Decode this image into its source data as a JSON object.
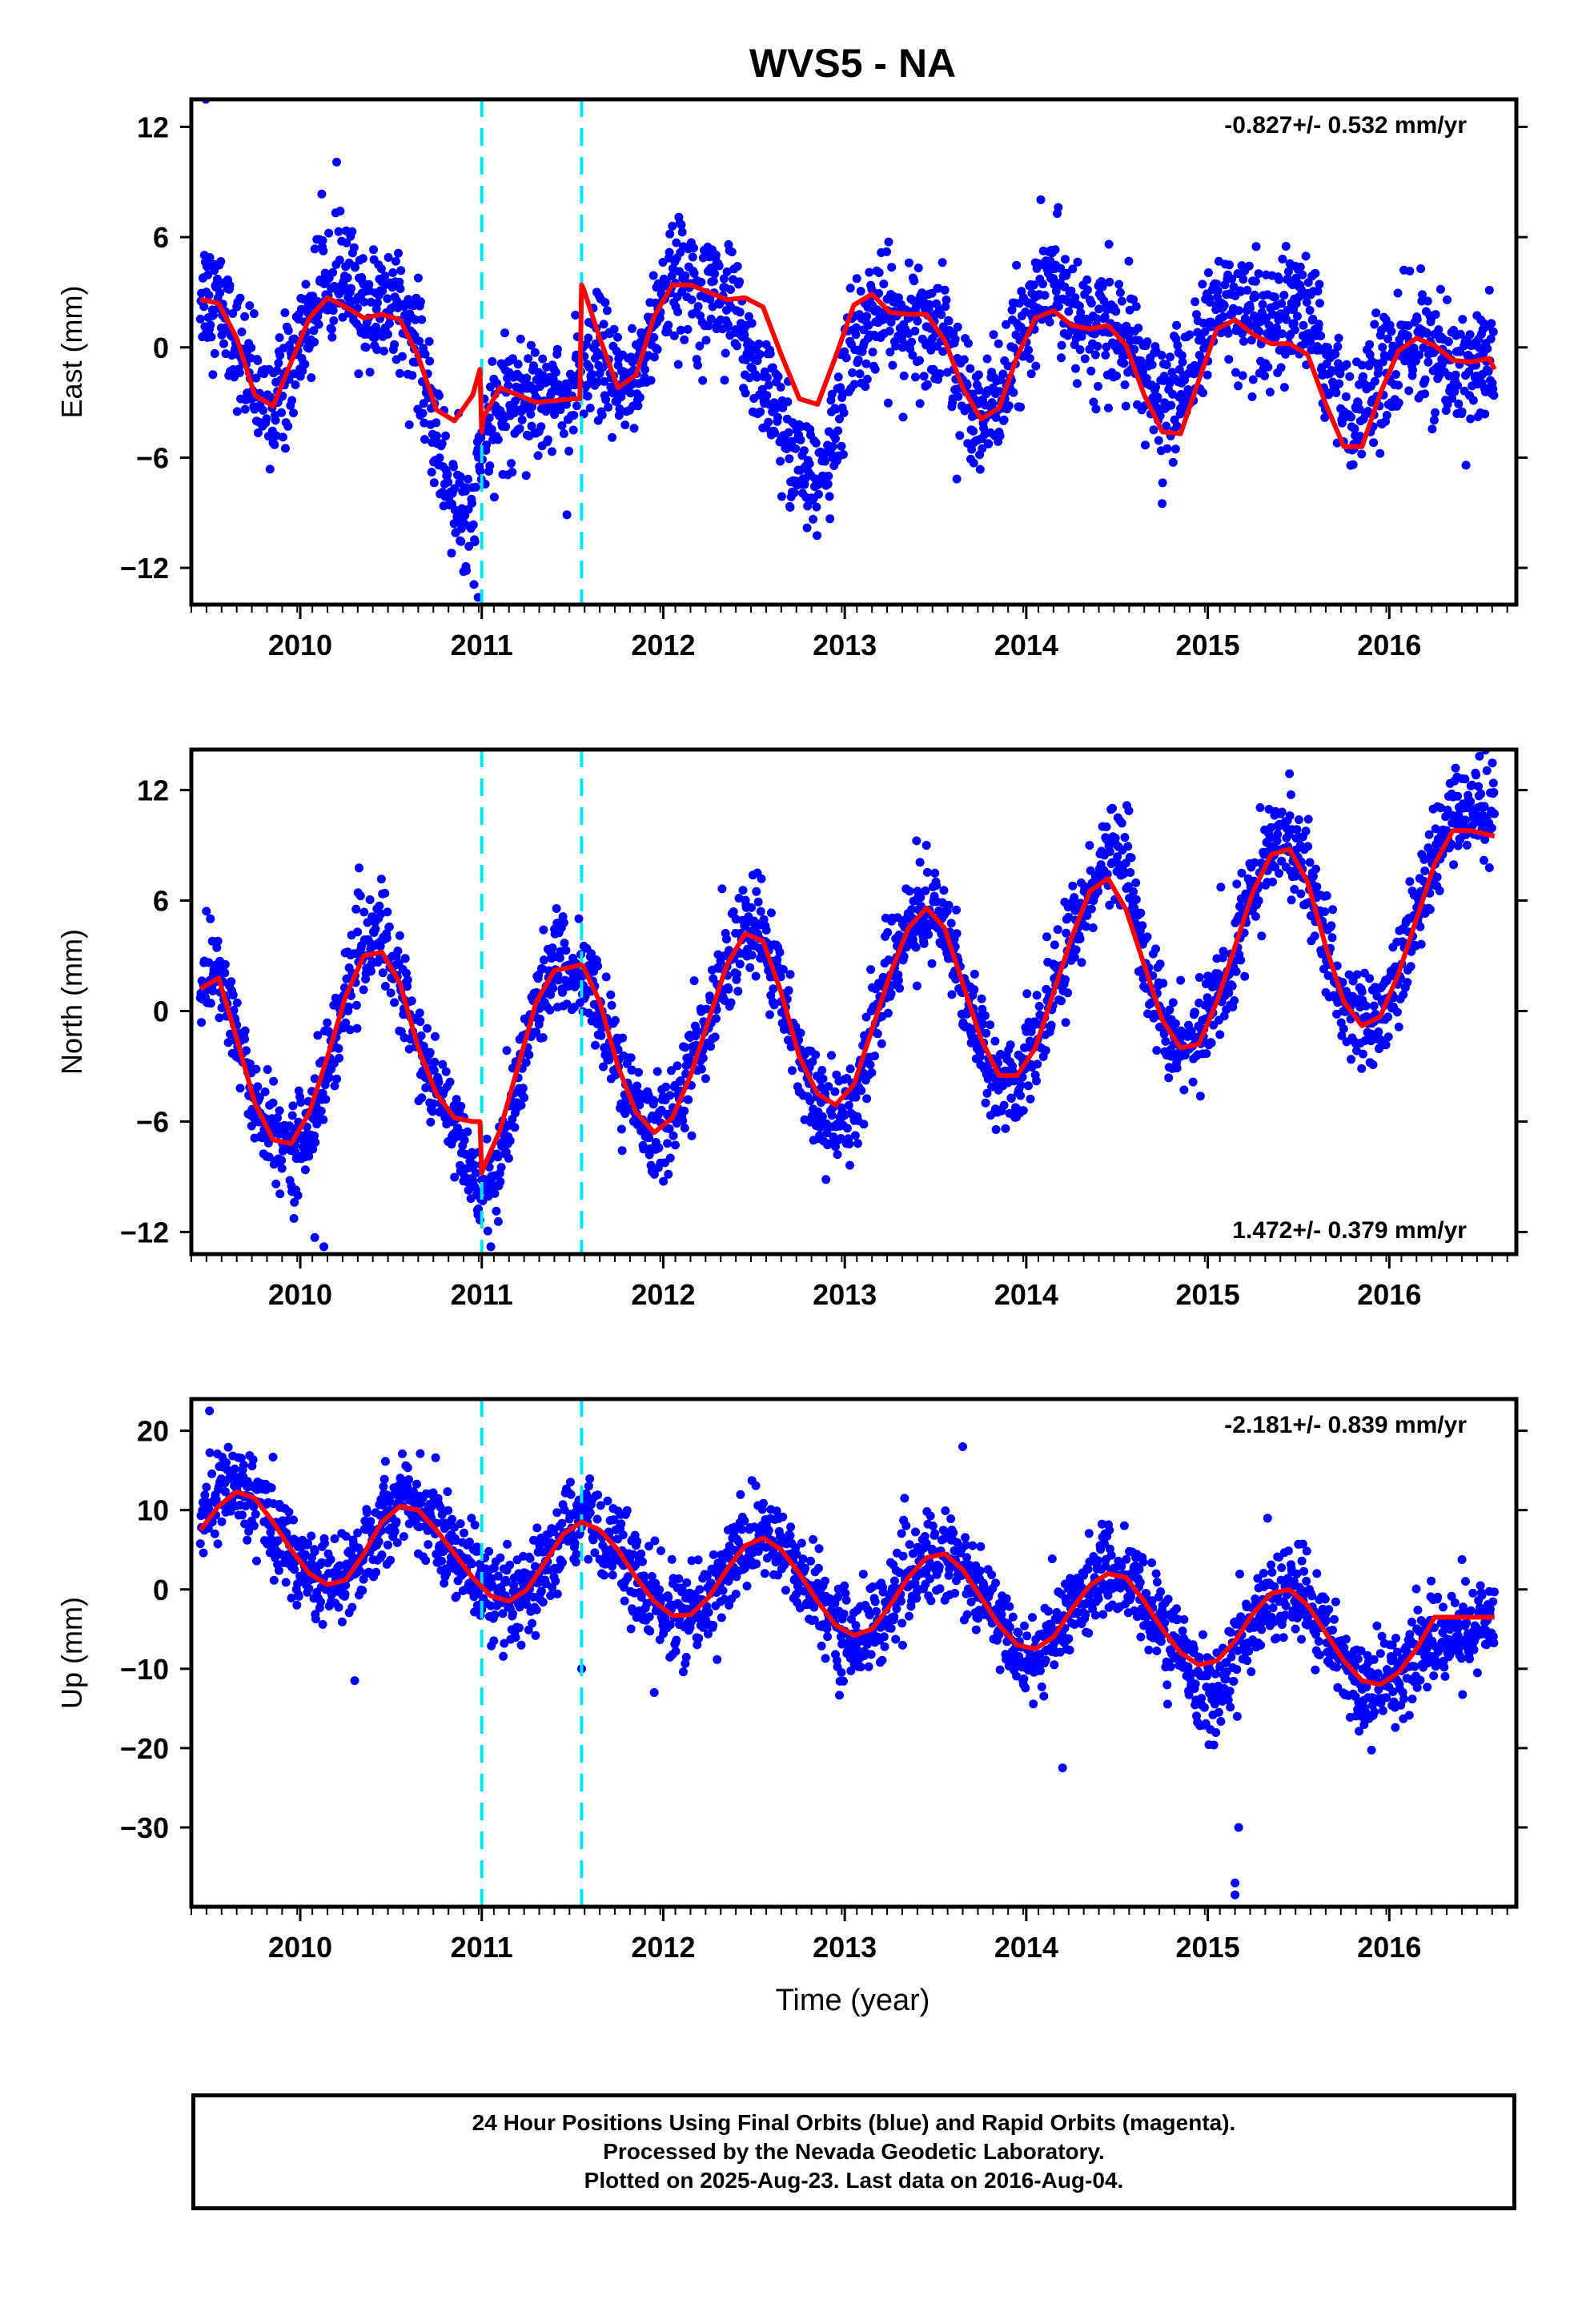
{
  "title": "WVS5 - NA",
  "xlabel": "Time (year)",
  "colors": {
    "final_points": "#0000ff",
    "model_line": "#ff0000",
    "offsets": "#00e5ee",
    "frame": "#000000"
  },
  "chart_data": [
    {
      "type": "scatter",
      "name": "east",
      "ylabel": "East (mm)",
      "xlim": [
        2009.4,
        2016.7
      ],
      "ylim": [
        -14,
        13.5
      ],
      "xticks": [
        2010,
        2011,
        2012,
        2013,
        2014,
        2015,
        2016
      ],
      "yticks": [
        -12,
        -6,
        0,
        6,
        12
      ],
      "yticklabels": [
        "−12",
        "−6",
        "0",
        "6",
        "12"
      ],
      "rate_label": "-0.827+/- 0.532 mm/yr",
      "rate_label_position": "top-right",
      "offsets": [
        2011.0,
        2011.55
      ],
      "model": {
        "x": [
          2009.45,
          2009.55,
          2009.65,
          2009.75,
          2009.85,
          2009.95,
          2010.05,
          2010.15,
          2010.25,
          2010.35,
          2010.45,
          2010.55,
          2010.65,
          2010.75,
          2010.85,
          2010.95,
          2010.99,
          2011.0,
          2011.01,
          2011.1,
          2011.2,
          2011.3,
          2011.4,
          2011.5,
          2011.54,
          2011.55,
          2011.56,
          2011.65,
          2011.75,
          2011.85,
          2011.95,
          2012.05,
          2012.15,
          2012.25,
          2012.35,
          2012.45,
          2012.55,
          2012.65,
          2012.75,
          2012.85,
          2012.95,
          2013.05,
          2013.15,
          2013.25,
          2013.35,
          2013.45,
          2013.55,
          2013.65,
          2013.75,
          2013.85,
          2013.95,
          2014.05,
          2014.15,
          2014.25,
          2014.35,
          2014.45,
          2014.55,
          2014.65,
          2014.75,
          2014.85,
          2014.95,
          2015.05,
          2015.15,
          2015.25,
          2015.35,
          2015.45,
          2015.55,
          2015.65,
          2015.75,
          2015.85,
          2015.95,
          2016.05,
          2016.15,
          2016.25,
          2016.35,
          2016.45,
          2016.55,
          2016.58
        ],
        "y": [
          2.6,
          2.4,
          0.5,
          -2.6,
          -3.2,
          -0.8,
          1.6,
          2.7,
          2.2,
          1.6,
          1.8,
          1.5,
          -0.5,
          -3.4,
          -4.0,
          -2.6,
          -1.2,
          -4.6,
          -3.8,
          -2.2,
          -2.6,
          -3.0,
          -2.9,
          -2.8,
          -2.8,
          3.4,
          3.2,
          0.5,
          -2.2,
          -1.5,
          1.7,
          3.4,
          3.4,
          3.0,
          2.6,
          2.7,
          2.2,
          -0.4,
          -2.8,
          -3.1,
          -0.5,
          2.3,
          2.9,
          1.9,
          1.8,
          1.8,
          0.4,
          -2.2,
          -3.9,
          -3.3,
          -0.5,
          1.6,
          2.0,
          1.2,
          1.0,
          1.2,
          0.1,
          -2.6,
          -4.6,
          -4.7,
          -1.8,
          1.0,
          1.5,
          0.7,
          0.2,
          0.2,
          -0.4,
          -3.1,
          -5.4,
          -5.4,
          -2.5,
          -0.2,
          0.5,
          0.1,
          -0.7,
          -0.8,
          -0.6,
          -1.2
        ]
      },
      "points_trend": {
        "x": [
          2009.45,
          2009.55,
          2009.65,
          2009.75,
          2009.85,
          2009.95,
          2010.05,
          2010.15,
          2010.25,
          2010.35,
          2010.45,
          2010.55,
          2010.65,
          2010.75,
          2010.85,
          2010.95,
          2011.0,
          2011.1,
          2011.2,
          2011.3,
          2011.4,
          2011.5,
          2011.55,
          2011.65,
          2011.75,
          2011.85,
          2011.95,
          2012.05,
          2012.15,
          2012.25,
          2012.35,
          2012.45,
          2012.55,
          2012.65,
          2012.75,
          2012.85,
          2012.95,
          2013.05,
          2013.15,
          2013.25,
          2013.35,
          2013.45,
          2013.55,
          2013.65,
          2013.75,
          2013.85,
          2013.95,
          2014.05,
          2014.15,
          2014.25,
          2014.35,
          2014.45,
          2014.55,
          2014.65,
          2014.75,
          2014.85,
          2014.95,
          2015.05,
          2015.15,
          2015.25,
          2015.35,
          2015.45,
          2015.55,
          2015.65,
          2015.75,
          2015.85,
          2015.95,
          2016.05,
          2016.15,
          2016.25,
          2016.35,
          2016.45,
          2016.58
        ],
        "y": [
          3.2,
          2.5,
          0.2,
          -2.5,
          -3.2,
          -1.2,
          1.5,
          4.5,
          3.5,
          2.0,
          2.2,
          2.8,
          -0.5,
          -5.0,
          -8.5,
          -10.0,
          -5.5,
          -3.2,
          -2.5,
          -2.3,
          -2.4,
          -2.8,
          -2.0,
          -0.5,
          -2.5,
          -1.5,
          1.5,
          3.6,
          4.0,
          3.4,
          2.5,
          0.5,
          -2.0,
          -4.5,
          -6.5,
          -7.5,
          -4.5,
          0.8,
          1.5,
          1.8,
          1.0,
          1.2,
          0.6,
          -2.0,
          -3.5,
          -3.0,
          0.2,
          2.2,
          3.8,
          2.5,
          0.8,
          1.0,
          0.2,
          -1.5,
          -3.5,
          -2.0,
          0.0,
          2.0,
          2.2,
          1.0,
          0.5,
          1.5,
          2.5,
          -1.0,
          -3.0,
          -3.5,
          -1.5,
          -0.5,
          0.5,
          -0.5,
          -1.0,
          -1.0,
          -1.0
        ]
      },
      "points_noise_sd": 1.6,
      "outliers": {
        "x": [
          2009.48,
          2010.98,
          2010.9
        ],
        "y": [
          13.5,
          -13.6,
          -12.2
        ]
      }
    },
    {
      "type": "scatter",
      "name": "north",
      "ylabel": "North (mm)",
      "xlim": [
        2009.4,
        2016.7
      ],
      "ylim": [
        -13.2,
        14.2
      ],
      "xticks": [
        2010,
        2011,
        2012,
        2013,
        2014,
        2015,
        2016
      ],
      "yticks": [
        -12,
        -6,
        0,
        6,
        12
      ],
      "yticklabels": [
        "−12",
        "−6",
        "0",
        "6",
        "12"
      ],
      "rate_label": "1.472+/- 0.379 mm/yr",
      "rate_label_position": "bottom-right",
      "offsets": [
        2011.0,
        2011.55
      ],
      "model": {
        "x": [
          2009.45,
          2009.55,
          2009.65,
          2009.75,
          2009.85,
          2009.95,
          2010.05,
          2010.15,
          2010.25,
          2010.35,
          2010.45,
          2010.55,
          2010.65,
          2010.75,
          2010.85,
          2010.95,
          2010.99,
          2011.0,
          2011.01,
          2011.1,
          2011.2,
          2011.3,
          2011.4,
          2011.5,
          2011.54,
          2011.55,
          2011.56,
          2011.65,
          2011.75,
          2011.85,
          2011.95,
          2012.05,
          2012.15,
          2012.25,
          2012.35,
          2012.45,
          2012.55,
          2012.65,
          2012.75,
          2012.85,
          2012.95,
          2013.05,
          2013.15,
          2013.25,
          2013.35,
          2013.45,
          2013.55,
          2013.65,
          2013.75,
          2013.85,
          2013.95,
          2014.05,
          2014.15,
          2014.25,
          2014.35,
          2014.45,
          2014.55,
          2014.65,
          2014.75,
          2014.85,
          2014.95,
          2015.05,
          2015.15,
          2015.25,
          2015.35,
          2015.45,
          2015.55,
          2015.65,
          2015.75,
          2015.85,
          2015.95,
          2016.05,
          2016.15,
          2016.25,
          2016.35,
          2016.45,
          2016.58
        ],
        "y": [
          1.2,
          1.8,
          -1.5,
          -5.0,
          -7.0,
          -7.2,
          -5.5,
          -2.5,
          0.8,
          3.0,
          3.2,
          1.5,
          -2.0,
          -4.5,
          -5.8,
          -6.0,
          -6.0,
          -8.8,
          -8.5,
          -6.5,
          -3.0,
          0.5,
          2.2,
          2.4,
          2.5,
          2.5,
          2.4,
          0.5,
          -3.0,
          -5.5,
          -6.6,
          -5.8,
          -3.5,
          -0.5,
          2.5,
          4.2,
          3.8,
          1.0,
          -2.5,
          -4.5,
          -5.1,
          -4.0,
          -1.0,
          2.0,
          4.5,
          5.6,
          4.5,
          1.5,
          -1.5,
          -3.5,
          -3.5,
          -2.0,
          1.0,
          4.0,
          6.5,
          7.2,
          5.5,
          2.5,
          -0.5,
          -2.0,
          -1.8,
          0.5,
          3.5,
          6.5,
          8.5,
          8.8,
          7.0,
          3.5,
          0.5,
          -0.8,
          -0.3,
          2.0,
          5.0,
          8.0,
          9.8,
          9.8,
          9.5
        ]
      },
      "points_trend": {
        "x": [
          2009.45,
          2009.55,
          2009.65,
          2009.75,
          2009.85,
          2009.95,
          2010.05,
          2010.15,
          2010.25,
          2010.35,
          2010.45,
          2010.55,
          2010.65,
          2010.75,
          2010.85,
          2010.95,
          2011.0,
          2011.1,
          2011.2,
          2011.3,
          2011.4,
          2011.5,
          2011.55,
          2011.65,
          2011.75,
          2011.85,
          2011.95,
          2012.05,
          2012.15,
          2012.25,
          2012.35,
          2012.45,
          2012.55,
          2012.65,
          2012.75,
          2012.85,
          2012.95,
          2013.05,
          2013.15,
          2013.25,
          2013.35,
          2013.45,
          2013.55,
          2013.65,
          2013.75,
          2013.85,
          2013.95,
          2014.05,
          2014.15,
          2014.25,
          2014.35,
          2014.45,
          2014.55,
          2014.65,
          2014.75,
          2014.85,
          2014.95,
          2015.05,
          2015.15,
          2015.25,
          2015.35,
          2015.45,
          2015.55,
          2015.65,
          2015.75,
          2015.85,
          2015.95,
          2016.05,
          2016.15,
          2016.25,
          2016.35,
          2016.45,
          2016.58
        ],
        "y": [
          1.8,
          2.0,
          -1.5,
          -5.0,
          -7.0,
          -7.5,
          -6.5,
          -3.0,
          0.8,
          3.5,
          4.5,
          1.5,
          -2.0,
          -4.5,
          -6.5,
          -9.0,
          -9.5,
          -8.5,
          -4.0,
          0.5,
          2.5,
          2.0,
          2.0,
          0.0,
          -3.0,
          -5.5,
          -6.5,
          -5.5,
          -3.0,
          -0.5,
          2.5,
          4.5,
          4.0,
          1.0,
          -2.5,
          -4.5,
          -6.5,
          -5.0,
          -1.0,
          2.5,
          4.5,
          5.5,
          4.5,
          1.5,
          -1.5,
          -3.5,
          -4.0,
          -2.0,
          1.0,
          4.0,
          6.5,
          9.0,
          8.0,
          3.0,
          -0.5,
          -2.0,
          -1.5,
          0.5,
          3.5,
          6.5,
          9.0,
          9.5,
          7.0,
          3.5,
          0.5,
          -0.5,
          -0.5,
          2.0,
          5.0,
          8.0,
          10.5,
          11.5,
          11.0
        ]
      },
      "points_noise_sd": 1.3,
      "outliers": {
        "x": [
          2010.08,
          2010.13,
          2011.05,
          2013.45
        ],
        "y": [
          -12.3,
          -12.8,
          -12.8,
          9.0
        ]
      }
    },
    {
      "type": "scatter",
      "name": "up",
      "ylabel": "Up (mm)",
      "xlim": [
        2009.4,
        2016.7
      ],
      "ylim": [
        -40,
        24
      ],
      "xticks": [
        2010,
        2011,
        2012,
        2013,
        2014,
        2015,
        2016
      ],
      "yticks": [
        -30,
        -20,
        -10,
        0,
        10,
        20
      ],
      "yticklabels": [
        "−30",
        "−20",
        "−10",
        "0",
        "10",
        "20"
      ],
      "rate_label": "-2.181+/- 0.839 mm/yr",
      "rate_label_position": "top-right",
      "offsets": [
        2011.0,
        2011.55
      ],
      "model": {
        "x": [
          2009.45,
          2009.55,
          2009.65,
          2009.75,
          2009.85,
          2009.95,
          2010.05,
          2010.15,
          2010.25,
          2010.35,
          2010.45,
          2010.55,
          2010.65,
          2010.75,
          2010.85,
          2010.95,
          2011.05,
          2011.15,
          2011.25,
          2011.35,
          2011.45,
          2011.55,
          2011.65,
          2011.75,
          2011.85,
          2011.95,
          2012.05,
          2012.15,
          2012.25,
          2012.35,
          2012.45,
          2012.55,
          2012.65,
          2012.75,
          2012.85,
          2012.95,
          2013.05,
          2013.15,
          2013.25,
          2013.35,
          2013.45,
          2013.55,
          2013.65,
          2013.75,
          2013.85,
          2013.95,
          2014.05,
          2014.15,
          2014.25,
          2014.35,
          2014.45,
          2014.55,
          2014.65,
          2014.75,
          2014.85,
          2014.95,
          2015.05,
          2015.15,
          2015.25,
          2015.35,
          2015.45,
          2015.55,
          2015.65,
          2015.75,
          2015.85,
          2015.95,
          2016.05,
          2016.15,
          2016.25,
          2016.35,
          2016.45,
          2016.58
        ],
        "y": [
          7.5,
          10.5,
          12.3,
          11.5,
          8.5,
          5.0,
          2.0,
          0.6,
          1.2,
          4.5,
          8.5,
          10.5,
          10.0,
          7.5,
          4.5,
          1.5,
          -0.8,
          -1.5,
          0.0,
          3.5,
          7.0,
          8.5,
          7.5,
          5.0,
          1.5,
          -1.5,
          -3.3,
          -3.2,
          -1.0,
          2.5,
          5.5,
          6.5,
          5.0,
          2.0,
          -1.5,
          -4.5,
          -5.8,
          -5.0,
          -2.0,
          1.5,
          4.0,
          4.5,
          2.5,
          -1.0,
          -4.5,
          -7.0,
          -7.5,
          -6.0,
          -2.5,
          0.5,
          2.0,
          1.5,
          -1.5,
          -5.0,
          -8.0,
          -9.5,
          -9.0,
          -6.5,
          -3.0,
          -0.5,
          0.0,
          -2.0,
          -5.5,
          -9.0,
          -11.5,
          -12.0,
          -10.5,
          -7.5,
          -3.5,
          -3.5,
          -3.5,
          -3.5
        ]
      },
      "points_trend": {
        "x": [
          2009.45,
          2009.55,
          2009.65,
          2009.75,
          2009.85,
          2009.95,
          2010.05,
          2010.15,
          2010.25,
          2010.35,
          2010.45,
          2010.55,
          2010.65,
          2010.75,
          2010.85,
          2010.95,
          2011.05,
          2011.15,
          2011.25,
          2011.35,
          2011.45,
          2011.55,
          2011.65,
          2011.75,
          2011.85,
          2011.95,
          2012.05,
          2012.15,
          2012.25,
          2012.35,
          2012.45,
          2012.55,
          2012.65,
          2012.75,
          2012.85,
          2012.95,
          2013.05,
          2013.15,
          2013.25,
          2013.35,
          2013.45,
          2013.55,
          2013.65,
          2013.75,
          2013.85,
          2013.95,
          2014.05,
          2014.15,
          2014.25,
          2014.35,
          2014.45,
          2014.55,
          2014.65,
          2014.75,
          2014.85,
          2014.95,
          2015.05,
          2015.15,
          2015.25,
          2015.35,
          2015.45,
          2015.55,
          2015.65,
          2015.75,
          2015.85,
          2015.95,
          2016.05,
          2016.15,
          2016.25,
          2016.35,
          2016.45,
          2016.58
        ],
        "y": [
          9.0,
          12.0,
          13.0,
          11.5,
          8.5,
          5.0,
          2.0,
          0.5,
          1.2,
          4.5,
          9.0,
          11.5,
          10.5,
          8.0,
          5.0,
          2.0,
          -0.5,
          -2.5,
          -1.5,
          2.0,
          7.0,
          9.5,
          8.0,
          5.0,
          1.5,
          -1.5,
          -3.3,
          -3.2,
          -1.0,
          2.5,
          5.5,
          7.0,
          5.0,
          2.0,
          -1.5,
          -4.5,
          -6.5,
          -5.0,
          -2.0,
          1.5,
          4.0,
          4.5,
          2.5,
          -1.0,
          -4.5,
          -8.0,
          -8.5,
          -6.0,
          -2.5,
          0.5,
          2.0,
          1.5,
          -1.5,
          -5.0,
          -8.0,
          -12.0,
          -13.0,
          -8.0,
          -4.0,
          -1.0,
          0.0,
          -2.0,
          -5.5,
          -9.0,
          -12.0,
          -12.5,
          -10.5,
          -7.5,
          -6.0,
          -6.0,
          -5.0,
          -4.5
        ]
      },
      "points_noise_sd": 2.8,
      "outliers": {
        "x": [
          2009.5,
          2010.3,
          2011.55,
          2011.95,
          2013.65,
          2014.2,
          2015.17,
          2015.15,
          2015.15
        ],
        "y": [
          22.5,
          -11.5,
          -10.0,
          -13.0,
          18.0,
          -22.5,
          -30.0,
          -37.0,
          -38.5
        ]
      }
    }
  ],
  "footer": {
    "line1": "24 Hour Positions Using Final Orbits (blue) and Rapid Orbits (magenta).",
    "line2": "Processed by the Nevada Geodetic Laboratory.",
    "line3": "Plotted on 2025-Aug-23. Last data on 2016-Aug-04."
  }
}
